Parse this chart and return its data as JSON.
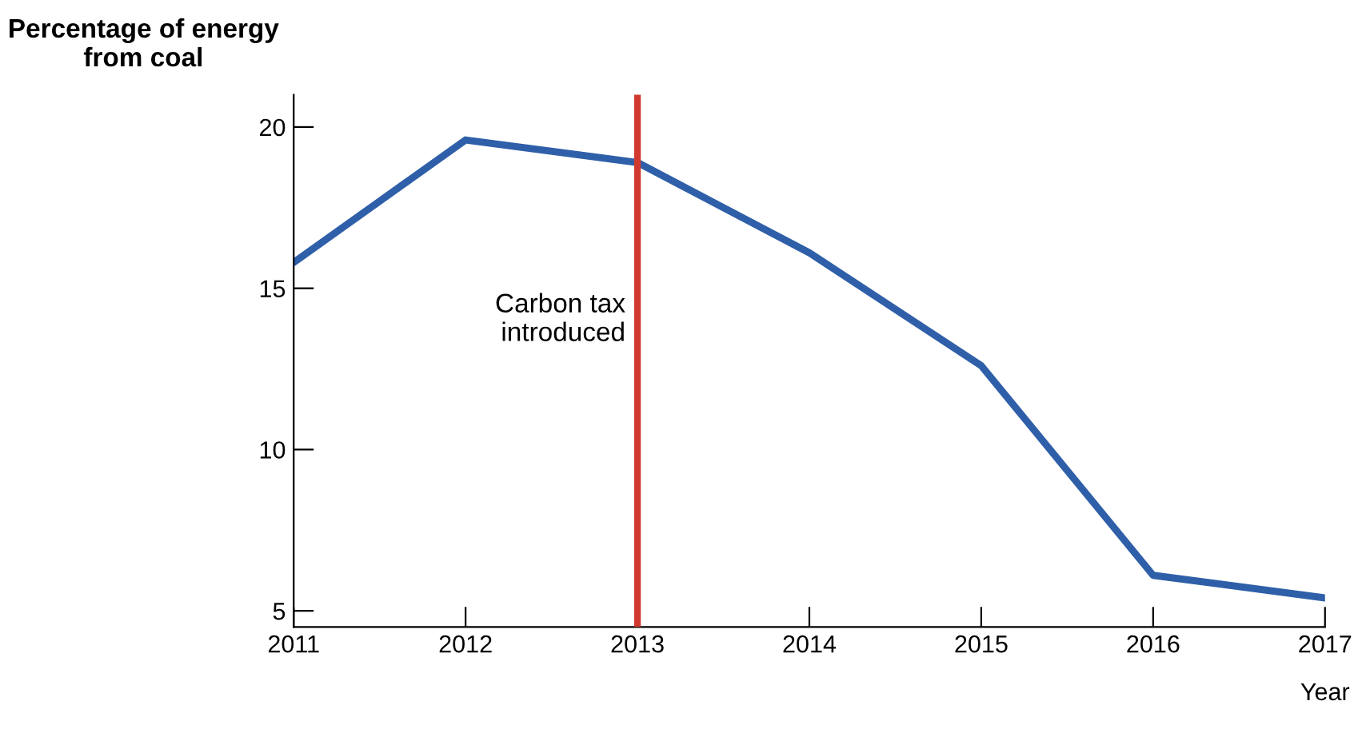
{
  "chart_data": {
    "type": "line",
    "xlabel": "Year",
    "ylabel": "Percentage of energy from coal",
    "x": [
      2011,
      2012,
      2013,
      2014,
      2015,
      2016,
      2017
    ],
    "series": [
      {
        "color": "#2f5fa8",
        "values": [
          15.8,
          19.6,
          18.9,
          16.1,
          12.6,
          6.1,
          5.4
        ]
      }
    ],
    "xlim": [
      2011,
      2017
    ],
    "ylim": [
      4.5,
      21
    ],
    "xticks": [
      2011,
      2012,
      2013,
      2014,
      2015,
      2016,
      2017
    ],
    "yticks": [
      5,
      10,
      15,
      20
    ],
    "ref_lines": [
      {
        "axis": "x",
        "value": 2013,
        "label": "Carbon tax\nintroduced",
        "color": "#d03a2e"
      }
    ],
    "grid": false,
    "legend": false,
    "marker": "none",
    "line_style": "solid"
  }
}
